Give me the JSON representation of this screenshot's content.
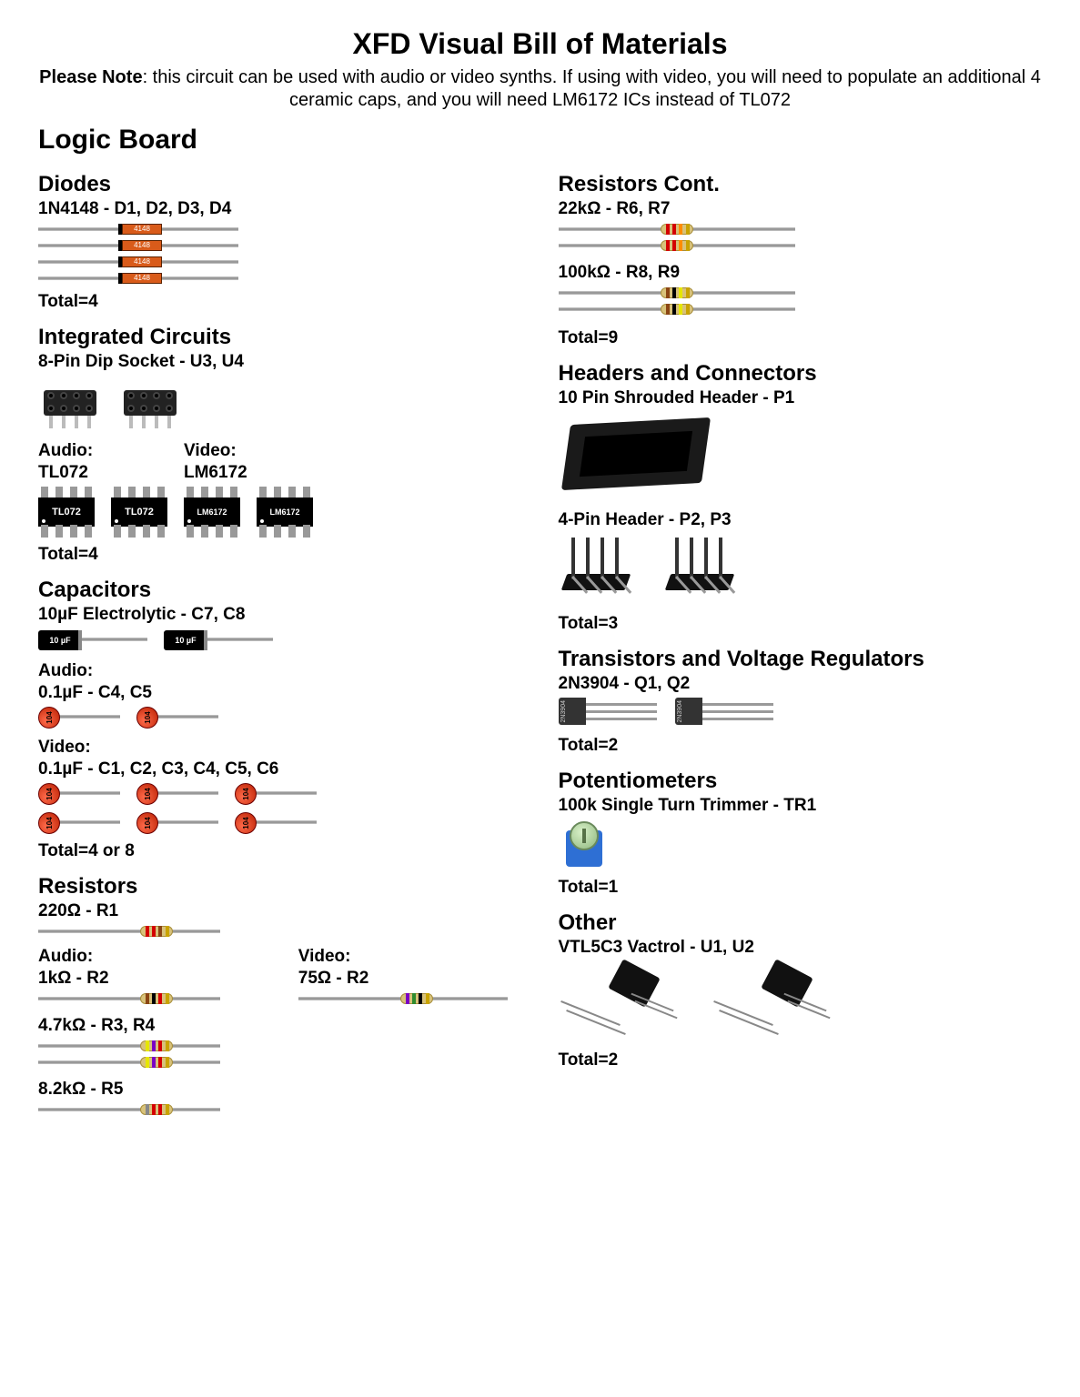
{
  "title": "XFD Visual Bill of Materials",
  "note_bold": "Please Note",
  "note_rest": ": this circuit can be used with audio or video synths. If using with video, you will need to populate an additional 4 ceramic caps, and you will need LM6172 ICs instead of TL072",
  "board": "Logic Board",
  "diodes": {
    "heading": "Diodes",
    "spec": "1N4148 - D1, D2, D3, D4",
    "body_label": "4148",
    "count": 4,
    "total": "Total=4"
  },
  "ics": {
    "heading": "Integrated Circuits",
    "spec": "8-Pin Dip Socket - U3, U4",
    "audio_label": "Audio:",
    "audio_part": "TL072",
    "video_label": "Video:",
    "video_part": "LM6172",
    "total": "Total=4"
  },
  "caps": {
    "heading": "Capacitors",
    "elec_spec": "10µF Electrolytic - C7, C8",
    "elec_label": "10 µF",
    "audio_label": "Audio:",
    "audio_spec": "0.1µF - C4, C5",
    "video_label": "Video:",
    "video_spec": "0.1µF - C1, C2, C3, C4, C5, C6",
    "ceramic_label": "104",
    "total": "Total=4 or 8"
  },
  "res_left": {
    "heading": "Resistors",
    "r1": {
      "spec": "220Ω - R1",
      "bands": [
        "#d40000",
        "#d40000",
        "#8b4513",
        "#c9a300"
      ]
    },
    "r2a": {
      "label": "Audio:",
      "spec": "1kΩ - R2",
      "bands": [
        "#8b4513",
        "#000000",
        "#d40000",
        "#c9a300"
      ]
    },
    "r2v": {
      "label": "Video:",
      "spec": "75Ω - R2",
      "bands": [
        "#7a00c4",
        "#2e8b2e",
        "#000000",
        "#c9a300"
      ]
    },
    "r34": {
      "spec": "4.7kΩ - R3, R4",
      "bands": [
        "#e6e600",
        "#7a00c4",
        "#d40000",
        "#c9a300"
      ]
    },
    "r5": {
      "spec": "8.2kΩ - R5",
      "bands": [
        "#888888",
        "#d40000",
        "#d40000",
        "#c9a300"
      ]
    }
  },
  "res_right": {
    "heading": "Resistors Cont.",
    "r67": {
      "spec": "22kΩ - R6, R7",
      "bands": [
        "#d40000",
        "#d40000",
        "#ff8c00",
        "#c9a300"
      ]
    },
    "r89": {
      "spec": "100kΩ - R8, R9",
      "bands": [
        "#8b4513",
        "#000000",
        "#e6e600",
        "#c9a300"
      ]
    },
    "total": "Total=9"
  },
  "headers": {
    "heading": "Headers and Connectors",
    "p1": "10 Pin Shrouded Header - P1",
    "p23": "4-Pin Header - P2, P3",
    "total": "Total=3"
  },
  "trans": {
    "heading": "Transistors and Voltage Regulators",
    "spec": "2N3904 - Q1, Q2",
    "body_label": "2N3904",
    "total": "Total=2"
  },
  "pots": {
    "heading": "Potentiometers",
    "spec": "100k Single Turn Trimmer - TR1",
    "total": "Total=1"
  },
  "other": {
    "heading": "Other",
    "spec": "VTL5C3 Vactrol - U1, U2",
    "total": "Total=2"
  }
}
